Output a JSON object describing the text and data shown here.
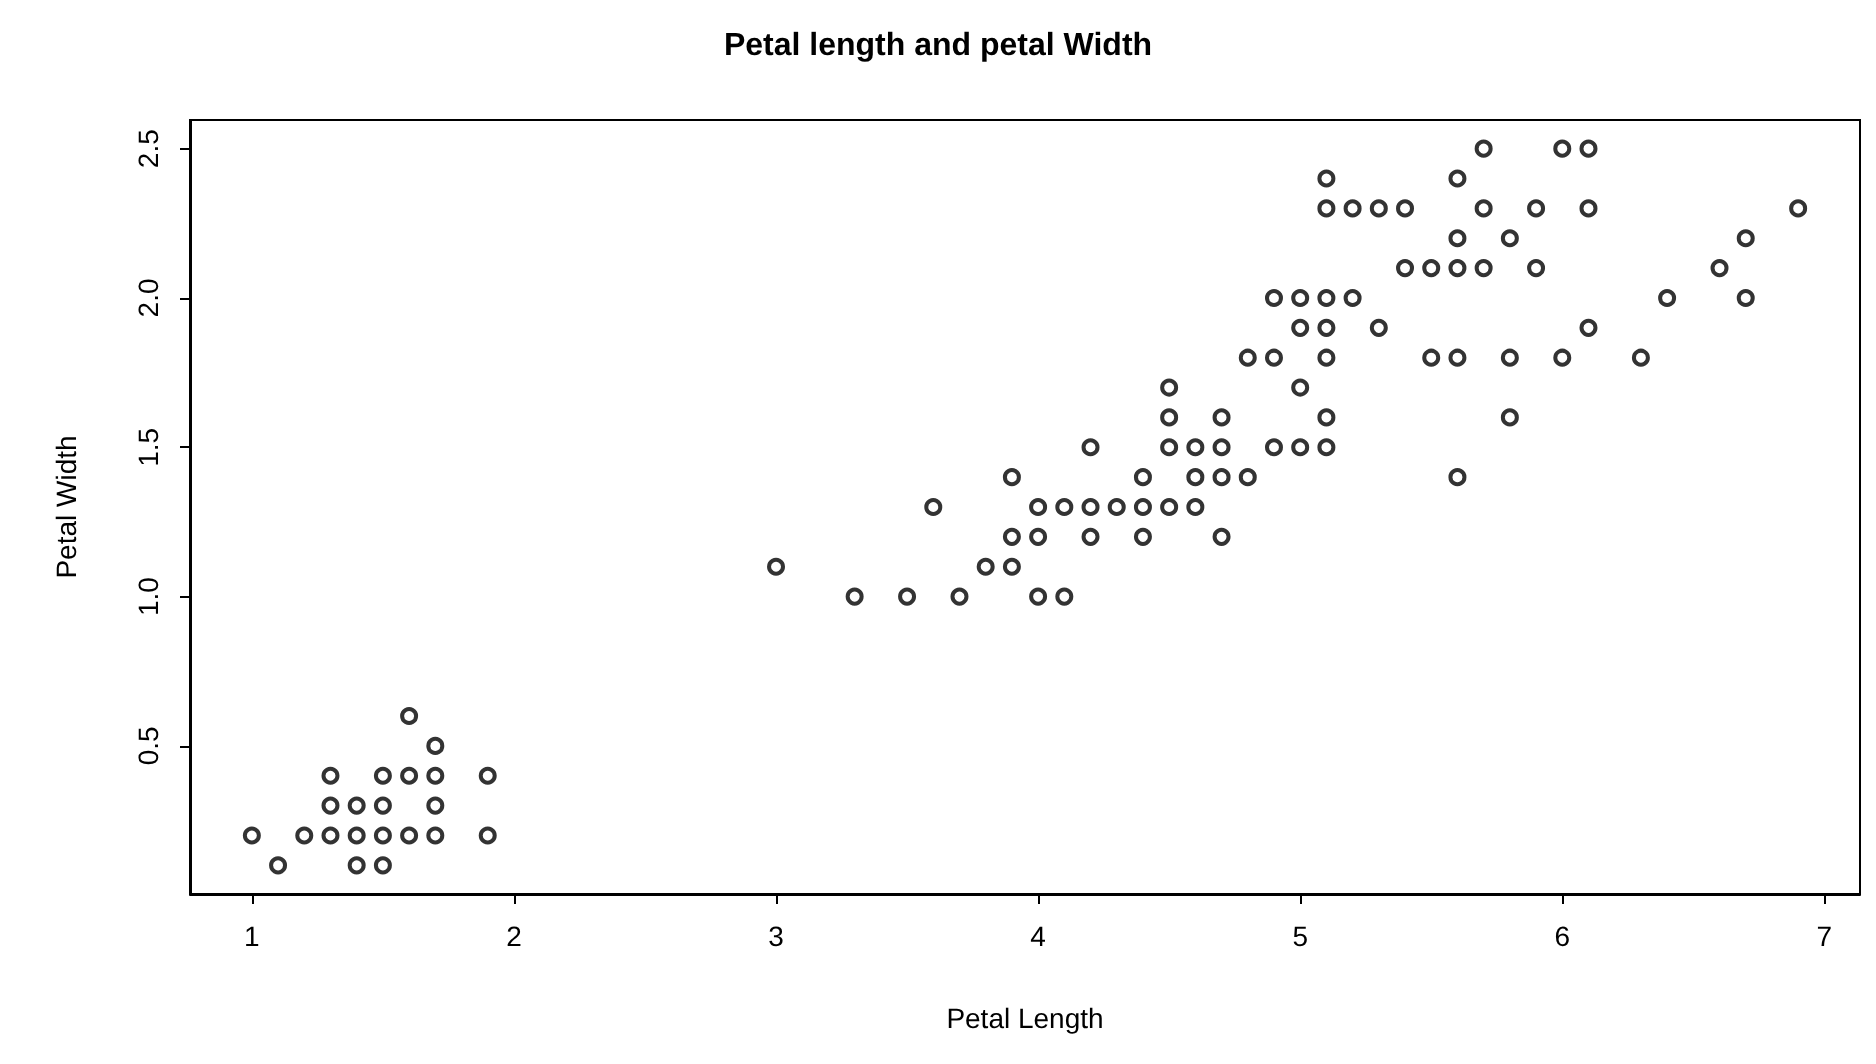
{
  "chart_data": {
    "type": "scatter",
    "title": "Petal length and petal Width",
    "xlabel": "Petal Length",
    "ylabel": "Petal Width",
    "xlim": [
      0.764,
      7.136
    ],
    "xticks": [
      1,
      2,
      3,
      4,
      5,
      6,
      7
    ],
    "ylim": [
      0.004,
      2.596
    ],
    "yticks": [
      0.5,
      {
        "value": 1,
        "label": "1.0"
      },
      1.5,
      {
        "value": 2,
        "label": "2.0"
      },
      2.5
    ],
    "grid": false,
    "marker": "circle",
    "series": [
      {
        "color": "#000000",
        "x": [
          1.0,
          1.1,
          1.2,
          1.3,
          1.3,
          1.3,
          1.4,
          1.4,
          1.4,
          1.5,
          1.5,
          1.5,
          1.5,
          1.6,
          1.6,
          1.6,
          1.7,
          1.7,
          1.7,
          1.7,
          1.9,
          1.9,
          3.0,
          3.3,
          3.5,
          3.6,
          3.7,
          3.8,
          3.9,
          3.9,
          3.9,
          4.0,
          4.0,
          4.0,
          4.1,
          4.1,
          4.2,
          4.2,
          4.2,
          4.3,
          4.4,
          4.4,
          4.4,
          4.5,
          4.5,
          4.5,
          4.5,
          4.6,
          4.6,
          4.6,
          4.7,
          4.7,
          4.7,
          4.7,
          4.8,
          4.8,
          4.9,
          4.9,
          4.9,
          5.0,
          5.0,
          5.0,
          5.0,
          5.1,
          5.1,
          5.1,
          5.1,
          5.1,
          5.1,
          5.1,
          5.2,
          5.2,
          5.3,
          5.3,
          5.4,
          5.4,
          5.5,
          5.5,
          5.6,
          5.6,
          5.6,
          5.6,
          5.6,
          5.7,
          5.7,
          5.7,
          5.8,
          5.8,
          5.8,
          5.9,
          5.9,
          6.0,
          6.0,
          6.1,
          6.1,
          6.1,
          6.3,
          6.4,
          6.6,
          6.7,
          6.7,
          6.9
        ],
        "values": [
          0.2,
          0.1,
          0.2,
          0.2,
          0.3,
          0.4,
          0.1,
          0.2,
          0.3,
          0.1,
          0.2,
          0.3,
          0.4,
          0.2,
          0.4,
          0.6,
          0.2,
          0.3,
          0.4,
          0.5,
          0.2,
          0.4,
          1.1,
          1.0,
          1.0,
          1.3,
          1.0,
          1.1,
          1.1,
          1.2,
          1.4,
          1.0,
          1.2,
          1.3,
          1.0,
          1.3,
          1.2,
          1.3,
          1.5,
          1.3,
          1.2,
          1.3,
          1.4,
          1.3,
          1.5,
          1.6,
          1.7,
          1.3,
          1.4,
          1.5,
          1.2,
          1.4,
          1.5,
          1.6,
          1.4,
          1.8,
          1.5,
          1.8,
          2.0,
          1.5,
          1.7,
          1.9,
          2.0,
          1.5,
          1.6,
          1.8,
          1.9,
          2.0,
          2.3,
          2.4,
          2.0,
          2.3,
          1.9,
          2.3,
          2.1,
          2.3,
          1.8,
          2.1,
          1.4,
          1.8,
          2.1,
          2.2,
          2.4,
          2.1,
          2.3,
          2.5,
          1.6,
          1.8,
          2.2,
          2.1,
          2.3,
          1.8,
          2.5,
          1.9,
          2.3,
          2.5,
          1.8,
          2.0,
          2.1,
          2.0,
          2.2,
          2.3
        ]
      }
    ]
  }
}
